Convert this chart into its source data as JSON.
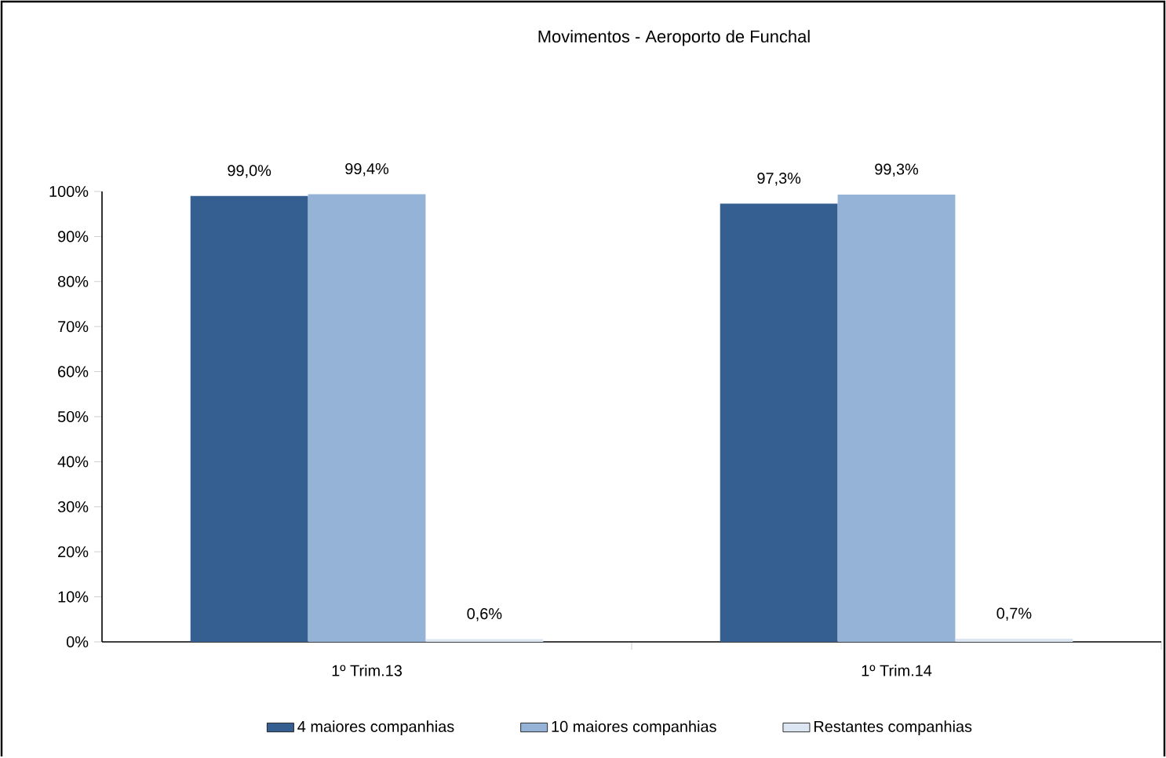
{
  "chart_data": {
    "type": "bar",
    "title": "Movimentos - Aeroporto de Funchal",
    "categories": [
      "1º Trim.13",
      "1º Trim.14"
    ],
    "series": [
      {
        "name": "4 maiores companhias",
        "color": "#355f91",
        "values": [
          99.0,
          97.3
        ],
        "value_labels": [
          "99,0%",
          "97,3%"
        ]
      },
      {
        "name": "10 maiores companhias",
        "color": "#95b3d7",
        "values": [
          99.4,
          99.3
        ],
        "value_labels": [
          "99,4%",
          "99,3%"
        ]
      },
      {
        "name": "Restantes companhias",
        "color": "#dce6f2",
        "values": [
          0.6,
          0.7
        ],
        "value_labels": [
          "0,6%",
          "0,7%"
        ]
      }
    ],
    "ylim": [
      0,
      100
    ],
    "yticks": [
      {
        "value": 0,
        "label": "0%"
      },
      {
        "value": 10,
        "label": "10%"
      },
      {
        "value": 20,
        "label": "20%"
      },
      {
        "value": 30,
        "label": "30%"
      },
      {
        "value": 40,
        "label": "40%"
      },
      {
        "value": 50,
        "label": "50%"
      },
      {
        "value": 60,
        "label": "60%"
      },
      {
        "value": 70,
        "label": "70%"
      },
      {
        "value": 80,
        "label": "80%"
      },
      {
        "value": 90,
        "label": "90%"
      },
      {
        "value": 100,
        "label": "100%"
      }
    ],
    "legend": "bottom",
    "grid": false
  }
}
